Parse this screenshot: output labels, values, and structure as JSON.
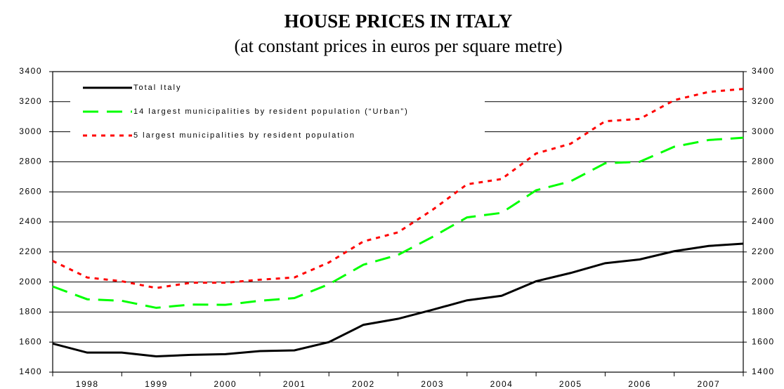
{
  "chart_data": {
    "type": "line",
    "title": "HOUSE PRICES IN ITALY",
    "subtitle": "(at constant prices in euros per square metre)",
    "categories": [
      null,
      "1998",
      null,
      "1999",
      null,
      "2000",
      null,
      "2001",
      null,
      "2002",
      null,
      "2003",
      null,
      "2004",
      null,
      "2005",
      null,
      "2006",
      null,
      "2007",
      null
    ],
    "series": [
      {
        "name": "Total Italy",
        "color": "#000000",
        "dash": "solid",
        "values": [
          1590,
          1530,
          1530,
          1505,
          1515,
          1520,
          1540,
          1545,
          1600,
          1715,
          1755,
          1815,
          1878,
          1908,
          2005,
          2060,
          2125,
          2150,
          2205,
          2240,
          2255
        ]
      },
      {
        "name": "14 largest municipalities by resident population (“Urban”)",
        "color": "#00ff00",
        "dash": "long",
        "values": [
          1970,
          1885,
          1875,
          1828,
          1850,
          1848,
          1875,
          1893,
          1985,
          2115,
          2180,
          2300,
          2430,
          2460,
          2610,
          2670,
          2790,
          2800,
          2900,
          2945,
          2960
        ]
      },
      {
        "name": "5 largest municipalities by resident population",
        "color": "#ff0000",
        "dash": "short",
        "values": [
          2140,
          2030,
          2005,
          1960,
          1995,
          1995,
          2015,
          2030,
          2130,
          2270,
          2330,
          2480,
          2650,
          2685,
          2855,
          2920,
          3070,
          3085,
          3210,
          3265,
          3285
        ]
      }
    ],
    "ylim": [
      1400,
      3400
    ],
    "yticks": [
      1400,
      1600,
      1800,
      2000,
      2200,
      2400,
      2600,
      2800,
      3000,
      3200,
      3400
    ],
    "y2lim": [
      1400,
      3400
    ],
    "y2ticks": [
      1400,
      1600,
      1800,
      2000,
      2200,
      2400,
      2600,
      2800,
      3000,
      3200,
      3400
    ],
    "grid": true
  }
}
